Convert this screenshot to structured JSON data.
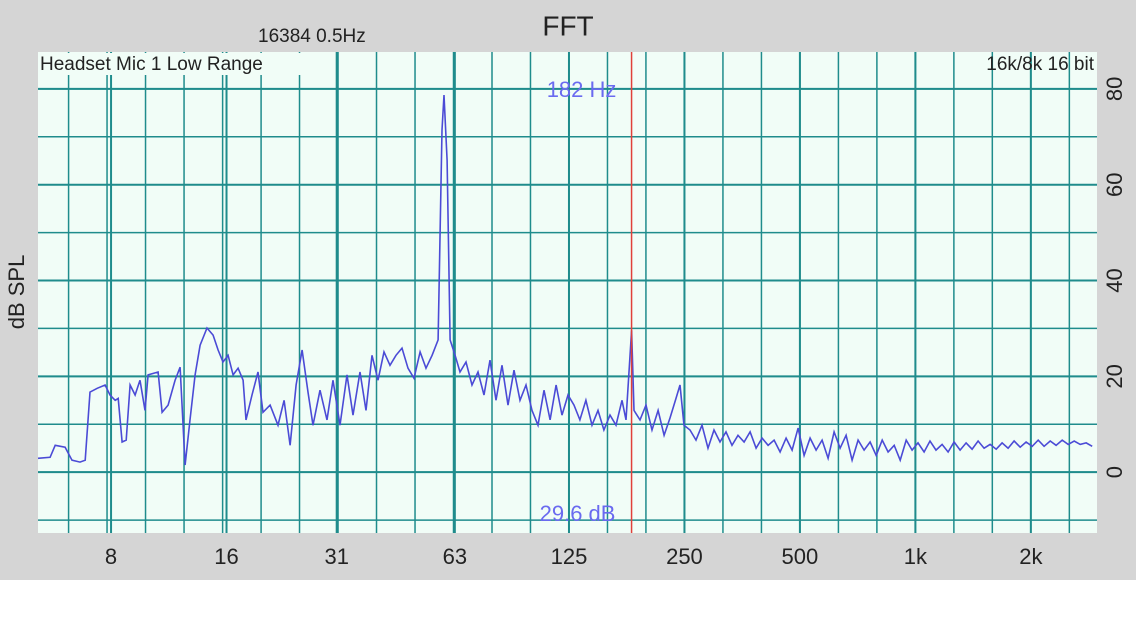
{
  "chart_data": {
    "type": "line",
    "title": "FFT",
    "header": "16384  0.5Hz",
    "source_label": "Headset Mic 1 Low Range",
    "format_label": "16k/8k 16 bit",
    "ylabel": "dB SPL",
    "xscale": "log",
    "grid": true,
    "grid_color": "#1f8c8c",
    "background": "#f1fdf7",
    "xlim": [
      5.16,
      2975
    ],
    "ylim": [
      -12.7,
      87.7
    ],
    "xticks": [
      8,
      16,
      31,
      63,
      125,
      250,
      500,
      {
        "value": 1000,
        "label": "1k"
      },
      {
        "value": 2000,
        "label": "2k"
      }
    ],
    "yticks": [
      0,
      20,
      40,
      60,
      80
    ],
    "xgrid": [
      6.2,
      7.81,
      9.84,
      12.4,
      15.63,
      19.69,
      24.8,
      31.25,
      39.37,
      49.61,
      62.5,
      78.75,
      99.21,
      125,
      157.5,
      198.4,
      250,
      315,
      396.9,
      500,
      630,
      793.7,
      1000,
      1260,
      1587,
      2000,
      2520
    ],
    "ygrid": [
      -10,
      0,
      10,
      20,
      30,
      40,
      50,
      60,
      70,
      80
    ],
    "cursor": {
      "freq": 182,
      "freq_label": "182 Hz",
      "level_label": "29.6 dB",
      "color": "#e0403a",
      "label_color": "#6a6af0"
    },
    "x": [
      5.16,
      5.55,
      5.72,
      6.07,
      6.33,
      6.64,
      6.85,
      7.05,
      7.36,
      7.72,
      7.95,
      8.2,
      8.35,
      8.55,
      8.76,
      8.97,
      9.24,
      9.52,
      9.81,
      9.99,
      10.61,
      10.87,
      11.27,
      11.75,
      12.11,
      12.48,
      12.85,
      13.25,
      13.65,
      14.23,
      14.76,
      15.21,
      15.67,
      16.15,
      16.64,
      17.15,
      17.67,
      17.99,
      18.65,
      19.33,
      19.92,
      20.78,
      21.8,
      22.6,
      23.43,
      24.29,
      25.18,
      26.1,
      26.89,
      28.05,
      29.25,
      30.32,
      31.62,
      32.97,
      34.18,
      35.65,
      36.96,
      38.31,
      39.72,
      41.18,
      42.69,
      44.26,
      45.88,
      47.57,
      49.31,
      51.13,
      53,
      54.95,
      56.97,
      58.34,
      59.05,
      60.13,
      61.22,
      63.09,
      64.99,
      67.38,
      69.85,
      72.41,
      75.06,
      77.81,
      80.67,
      83.63,
      86.7,
      89.88,
      93.17,
      96.59,
      100.1,
      103.8,
      107.6,
      111.6,
      115.7,
      119.9,
      124.3,
      128.8,
      133.5,
      138.4,
      143.5,
      148.8,
      154.2,
      159.9,
      165.8,
      171.9,
      176,
      182,
      184.7,
      191.5,
      198.5,
      205.8,
      213.4,
      221.2,
      229.3,
      237.7,
      243.4,
      249.3,
      258.5,
      268,
      277.8,
      288,
      298.6,
      309.5,
      320.9,
      332.7,
      344.9,
      357.6,
      370.7,
      384.3,
      398.4,
      413,
      428.2,
      443.9,
      460.2,
      477.1,
      494.6,
      512.8,
      531.6,
      551.1,
      571.3,
      592.3,
      614,
      636.6,
      659.9,
      684.1,
      709.2,
      735.2,
      762.2,
      790.2,
      819.2,
      849.2,
      880.4,
      912.7,
      946.2,
      980.6,
      1016,
      1054,
      1092,
      1132,
      1174,
      1217,
      1262,
      1308,
      1356,
      1406,
      1457,
      1511,
      1566,
      1624,
      1683,
      1745,
      1809,
      1876,
      1944,
      2016,
      2090,
      2166,
      2246,
      2328,
      2414,
      2502,
      2594,
      2689,
      2788,
      2890
    ],
    "series": [
      {
        "color": "#4b4bd6",
        "values": [
          2.9,
          3.1,
          5.6,
          5.2,
          2.5,
          2.1,
          2.5,
          16.7,
          17.5,
          18.2,
          16.1,
          15,
          15.4,
          6.3,
          6.7,
          18.2,
          16.1,
          19.2,
          12.9,
          20.3,
          20.9,
          12.5,
          14,
          19.2,
          21.9,
          1.5,
          10.9,
          20.3,
          26.5,
          30.1,
          28.6,
          25.5,
          23,
          24.4,
          20.3,
          21.7,
          19.2,
          10.9,
          16.1,
          20.9,
          12.5,
          14,
          9.8,
          15,
          5.6,
          18.2,
          25.5,
          16.7,
          9.8,
          17.1,
          10.9,
          19.2,
          9.8,
          20.3,
          11.9,
          20.9,
          12.9,
          24.4,
          19.2,
          25.1,
          22.3,
          24.4,
          25.9,
          21.7,
          19.6,
          25.1,
          21.7,
          24.4,
          27.6,
          71.4,
          78.7,
          65.1,
          27.6,
          24.4,
          20.9,
          23,
          18.2,
          20.9,
          16.1,
          23.4,
          15,
          22.3,
          14,
          21.3,
          15,
          18.2,
          12.9,
          9.8,
          17.1,
          10.9,
          18.2,
          11.9,
          16.1,
          14,
          10.9,
          15,
          9.8,
          12.9,
          8.8,
          11.9,
          9.8,
          15,
          10.9,
          29.6,
          12.9,
          10.9,
          14,
          8.8,
          12.9,
          7.7,
          11.3,
          15.4,
          18.2,
          9.8,
          8.8,
          6.7,
          9.8,
          5,
          8.8,
          6.3,
          8.4,
          5.6,
          7.7,
          6.3,
          8.4,
          5,
          7.1,
          5.6,
          6.7,
          4.2,
          7.1,
          4.6,
          9.2,
          3.5,
          7.1,
          4.6,
          6.7,
          2.9,
          8.4,
          5,
          7.7,
          2.5,
          6.7,
          4.6,
          6.3,
          3.5,
          6.7,
          4.2,
          5.6,
          2.5,
          6.7,
          4.6,
          6.1,
          4.2,
          6.5,
          4.6,
          5.8,
          4.2,
          6.3,
          4.6,
          6.1,
          4.8,
          6.5,
          5,
          5.8,
          4.8,
          6.1,
          5,
          6.5,
          5.2,
          6.3,
          5.4,
          6.7,
          5.4,
          6.5,
          5.6,
          6.7,
          5.8,
          6.5,
          5.8,
          6.1,
          5.4
        ]
      }
    ]
  }
}
